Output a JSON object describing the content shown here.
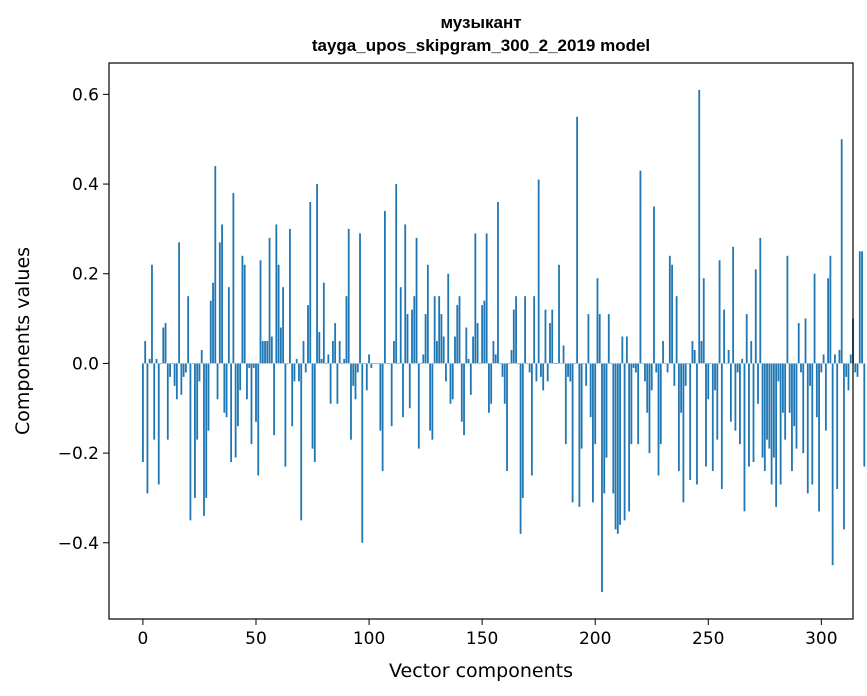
{
  "chart_data": {
    "type": "bar",
    "title": "музыкант",
    "subtitle": "tayga_upos_skipgram_300_2_2019 model",
    "xlabel": "Vector components",
    "ylabel": "Components values",
    "xlim": [
      -15,
      314
    ],
    "ylim": [
      -0.57,
      0.67
    ],
    "xticks": [
      0,
      50,
      100,
      150,
      200,
      250,
      300
    ],
    "yticks": [
      -0.4,
      -0.2,
      0.0,
      0.2,
      0.4,
      0.6
    ],
    "xtick_labels": [
      "0",
      "50",
      "100",
      "150",
      "200",
      "250",
      "300"
    ],
    "ytick_labels": [
      "−0.4",
      "−0.2",
      "0.0",
      "0.2",
      "0.4",
      "0.6"
    ],
    "bar_color": "#1f77b4",
    "grid": false,
    "values": [
      -0.22,
      0.05,
      -0.29,
      0.01,
      0.22,
      -0.17,
      0.01,
      -0.27,
      0.0,
      0.08,
      0.09,
      -0.17,
      -0.03,
      0.0,
      -0.05,
      -0.08,
      0.27,
      -0.07,
      -0.03,
      -0.02,
      0.15,
      -0.35,
      0.0,
      -0.3,
      -0.17,
      -0.04,
      0.03,
      -0.34,
      -0.3,
      -0.15,
      0.14,
      0.18,
      0.44,
      -0.08,
      0.27,
      0.31,
      -0.11,
      -0.12,
      0.17,
      -0.22,
      0.38,
      -0.21,
      -0.14,
      -0.06,
      0.24,
      0.22,
      -0.08,
      -0.01,
      -0.18,
      -0.01,
      -0.13,
      -0.25,
      0.23,
      0.05,
      0.05,
      0.05,
      0.28,
      0.06,
      -0.16,
      0.31,
      0.22,
      0.08,
      0.17,
      -0.23,
      0.0,
      0.3,
      -0.14,
      -0.04,
      0.01,
      -0.04,
      -0.35,
      0.05,
      -0.02,
      0.13,
      0.36,
      -0.19,
      -0.22,
      0.4,
      0.07,
      0.01,
      0.18,
      0.0,
      0.02,
      -0.09,
      0.05,
      0.09,
      -0.09,
      0.05,
      0.0,
      0.01,
      0.15,
      0.3,
      -0.17,
      -0.05,
      -0.08,
      -0.02,
      0.29,
      -0.4,
      0.0,
      -0.06,
      0.02,
      -0.01,
      0.0,
      0.0,
      0.0,
      -0.15,
      -0.24,
      0.34,
      0.0,
      0.0,
      -0.14,
      0.05,
      0.4,
      0.0,
      0.17,
      -0.12,
      0.31,
      0.11,
      -0.1,
      0.12,
      0.15,
      0.28,
      -0.19,
      0.0,
      0.02,
      0.11,
      0.22,
      -0.15,
      -0.17,
      0.15,
      0.05,
      0.15,
      0.11,
      0.06,
      -0.04,
      0.2,
      -0.09,
      -0.08,
      0.06,
      0.13,
      0.15,
      -0.13,
      -0.16,
      0.08,
      0.01,
      -0.07,
      0.06,
      0.29,
      0.09,
      0.0,
      0.13,
      0.14,
      0.29,
      -0.11,
      -0.09,
      0.05,
      0.02,
      0.36,
      0.0,
      -0.03,
      -0.09,
      -0.24,
      0.0,
      0.03,
      0.12,
      0.15,
      0.0,
      -0.38,
      -0.3,
      0.15,
      0.0,
      -0.02,
      -0.25,
      0.15,
      -0.04,
      0.41,
      -0.03,
      -0.06,
      0.12,
      -0.04,
      0.09,
      0.12,
      0.0,
      0.0,
      0.22,
      0.0,
      0.04,
      -0.18,
      -0.03,
      -0.04,
      -0.31,
      0.0,
      0.55,
      -0.32,
      -0.19,
      0.0,
      -0.05,
      0.11,
      -0.12,
      -0.31,
      -0.18,
      0.19,
      0.11,
      -0.51,
      -0.29,
      -0.21,
      0.11,
      0.0,
      -0.29,
      -0.37,
      -0.38,
      -0.36,
      0.06,
      -0.35,
      0.06,
      -0.33,
      -0.18,
      -0.01,
      -0.02,
      -0.18,
      0.43,
      0.0,
      -0.04,
      -0.11,
      -0.2,
      -0.06,
      0.35,
      -0.02,
      -0.25,
      -0.18,
      0.05,
      0.0,
      -0.02,
      0.24,
      0.22,
      -0.05,
      0.15,
      -0.24,
      -0.11,
      -0.31,
      -0.05,
      0.0,
      -0.26,
      0.05,
      0.03,
      -0.27,
      0.61,
      0.05,
      0.19,
      -0.23,
      -0.08,
      0.0,
      -0.24,
      -0.06,
      -0.17,
      0.23,
      -0.28,
      0.12,
      0.0,
      0.03,
      -0.13,
      0.26,
      -0.15,
      -0.02,
      -0.18,
      0.01,
      -0.33,
      0.11,
      -0.23,
      0.05,
      -0.22,
      0.21,
      -0.09,
      0.28,
      -0.21,
      -0.24,
      -0.17,
      -0.19,
      -0.27,
      -0.21,
      -0.32,
      -0.04,
      -0.27,
      -0.11,
      -0.17,
      0.24,
      -0.11,
      -0.24,
      -0.14,
      -0.19,
      0.09,
      -0.02,
      -0.2,
      0.1,
      -0.29,
      -0.05,
      -0.27,
      0.2,
      -0.12,
      -0.33,
      -0.02,
      0.02,
      -0.15,
      0.19,
      0.24,
      -0.45,
      0.02,
      -0.28,
      0.03,
      0.5,
      -0.37,
      -0.03,
      -0.06,
      0.02,
      0.1,
      -0.02,
      -0.03,
      0.25,
      0.25,
      -0.23
    ]
  }
}
